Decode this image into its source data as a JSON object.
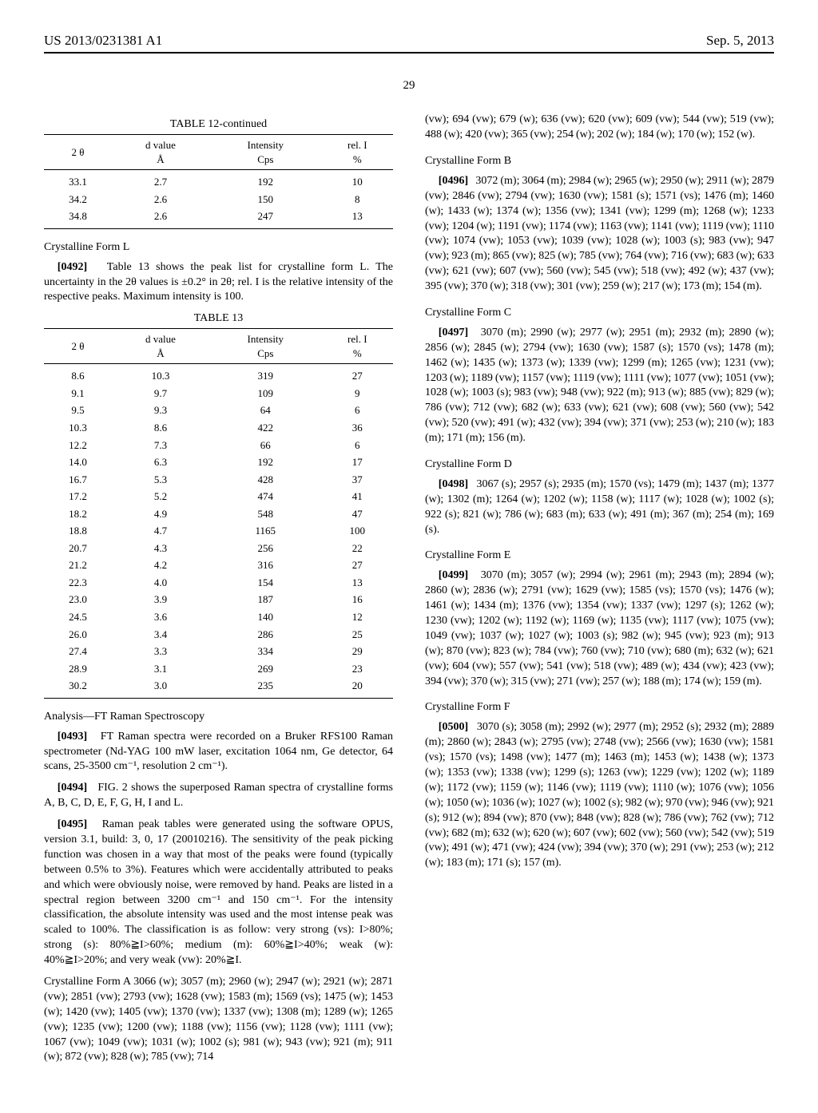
{
  "header": {
    "left": "US 2013/0231381 A1",
    "right": "Sep. 5, 2013"
  },
  "page_number": "29",
  "table12": {
    "caption": "TABLE 12-continued",
    "columns": [
      "2 θ",
      "d value\nÅ",
      "Intensity\nCps",
      "rel. I\n%"
    ],
    "rows": [
      [
        "33.1",
        "2.7",
        "192",
        "10"
      ],
      [
        "34.2",
        "2.6",
        "150",
        "8"
      ],
      [
        "34.8",
        "2.6",
        "247",
        "13"
      ]
    ]
  },
  "formL_heading": "Crystalline Form L",
  "para0492": "Table 13 shows the peak list for crystalline form L. The uncertainty in the 2θ values is ±0.2° in 2θ; rel. I is the relative intensity of the respective peaks. Maximum intensity is 100.",
  "table13": {
    "caption": "TABLE 13",
    "columns": [
      "2 θ",
      "d value\nÅ",
      "Intensity\nCps",
      "rel. I\n%"
    ],
    "rows": [
      [
        "8.6",
        "10.3",
        "319",
        "27"
      ],
      [
        "9.1",
        "9.7",
        "109",
        "9"
      ],
      [
        "9.5",
        "9.3",
        "64",
        "6"
      ],
      [
        "10.3",
        "8.6",
        "422",
        "36"
      ],
      [
        "12.2",
        "7.3",
        "66",
        "6"
      ],
      [
        "14.0",
        "6.3",
        "192",
        "17"
      ],
      [
        "16.7",
        "5.3",
        "428",
        "37"
      ],
      [
        "17.2",
        "5.2",
        "474",
        "41"
      ],
      [
        "18.2",
        "4.9",
        "548",
        "47"
      ],
      [
        "18.8",
        "4.7",
        "1165",
        "100"
      ],
      [
        "20.7",
        "4.3",
        "256",
        "22"
      ],
      [
        "21.2",
        "4.2",
        "316",
        "27"
      ],
      [
        "22.3",
        "4.0",
        "154",
        "13"
      ],
      [
        "23.0",
        "3.9",
        "187",
        "16"
      ],
      [
        "24.5",
        "3.6",
        "140",
        "12"
      ],
      [
        "26.0",
        "3.4",
        "286",
        "25"
      ],
      [
        "27.4",
        "3.3",
        "334",
        "29"
      ],
      [
        "28.9",
        "3.1",
        "269",
        "23"
      ],
      [
        "30.2",
        "3.0",
        "235",
        "20"
      ]
    ]
  },
  "raman_heading": "Analysis—FT Raman Spectroscopy",
  "para0493": "FT Raman spectra were recorded on a Bruker RFS100 Raman spectrometer (Nd-YAG 100 mW laser, excitation 1064 nm, Ge detector, 64 scans, 25-3500 cm⁻¹, resolution 2 cm⁻¹).",
  "para0494": "FIG. 2 shows the superposed Raman spectra of crystalline forms A, B, C, D, E, F, G, H, I and L.",
  "para0495": "Raman peak tables were generated using the software OPUS, version 3.1, build: 3, 0, 17 (20010216). The sensitivity of the peak picking function was chosen in a way that most of the peaks were found (typically between 0.5% to 3%). Features which were accidentally attributed to peaks and which were obviously noise, were removed by hand. Peaks are listed in a spectral region between 3200 cm⁻¹ and 150 cm⁻¹. For the intensity classification, the absolute intensity was used and the most intense peak was scaled to 100%. The classification is as follow: very strong (vs): I>80%; strong (s): 80%≧I>60%; medium (m): 60%≧I>40%; weak (w): 40%≧I>20%; and very weak (vw): 20%≧I.",
  "formA_text": "Crystalline Form A 3066 (w); 3057 (m); 2960 (w); 2947 (w); 2921 (w); 2871 (vw); 2851 (vw); 2793 (vw); 1628 (vw); 1583 (m); 1569 (vs); 1475 (w); 1453 (w); 1420 (vw); 1405 (vw); 1370 (vw); 1337 (vw); 1308 (m); 1289 (w); 1265 (vw); 1235 (vw); 1200 (vw); 1188 (vw); 1156 (vw); 1128 (vw); 1111 (vw); 1067 (vw); 1049 (vw); 1031 (w); 1002 (s); 981 (w); 943 (vw); 921 (m); 911 (w); 872 (vw); 828 (w); 785 (vw); 714",
  "formA_cont": "(vw); 694 (vw); 679 (w); 636 (vw); 620 (vw); 609 (vw); 544 (vw); 519 (vw); 488 (w); 420 (vw); 365 (vw); 254 (w); 202 (w); 184 (w); 170 (w); 152 (w).",
  "formB_heading": "Crystalline Form B",
  "para0496": "3072 (m); 3064 (m); 2984 (w); 2965 (w); 2950 (w); 2911 (w); 2879 (vw); 2846 (vw); 2794 (vw); 1630 (vw); 1581 (s); 1571 (vs); 1476 (m); 1460 (w); 1433 (w); 1374 (w); 1356 (vw); 1341 (vw); 1299 (m); 1268 (w); 1233 (vw); 1204 (w); 1191 (vw); 1174 (vw); 1163 (vw); 1141 (vw); 1119 (vw); 1110 (vw); 1074 (vw); 1053 (vw); 1039 (vw); 1028 (w); 1003 (s); 983 (vw); 947 (vw); 923 (m); 865 (vw); 825 (w); 785 (vw); 764 (vw); 716 (vw); 683 (w); 633 (vw); 621 (vw); 607 (vw); 560 (vw); 545 (vw); 518 (vw); 492 (w); 437 (vw); 395 (vw); 370 (w); 318 (vw); 301 (vw); 259 (w); 217 (w); 173 (m); 154 (m).",
  "formC_heading": "Crystalline Form C",
  "para0497": "3070 (m); 2990 (w); 2977 (w); 2951 (m); 2932 (m); 2890 (w); 2856 (w); 2845 (w); 2794 (vw); 1630 (vw); 1587 (s); 1570 (vs); 1478 (m); 1462 (w); 1435 (w); 1373 (w); 1339 (vw); 1299 (m); 1265 (vw); 1231 (vw); 1203 (w); 1189 (vw); 1157 (vw); 1119 (vw); 1111 (vw); 1077 (vw); 1051 (vw); 1028 (w); 1003 (s); 983 (vw); 948 (vw); 922 (m); 913 (w); 885 (vw); 829 (w); 786 (vw); 712 (vw); 682 (w); 633 (vw); 621 (vw); 608 (vw); 560 (vw); 542 (vw); 520 (vw); 491 (w); 432 (vw); 394 (vw); 371 (vw); 253 (w); 210 (w); 183 (m); 171 (m); 156 (m).",
  "formD_heading": "Crystalline Form D",
  "para0498": "3067 (s); 2957 (s); 2935 (m); 1570 (vs); 1479 (m); 1437 (m); 1377 (w); 1302 (m); 1264 (w); 1202 (w); 1158 (w); 1117 (w); 1028 (w); 1002 (s); 922 (s); 821 (w); 786 (w); 683 (m); 633 (w); 491 (m); 367 (m); 254 (m); 169 (s).",
  "formE_heading": "Crystalline Form E",
  "para0499": "3070 (m); 3057 (w); 2994 (w); 2961 (m); 2943 (m); 2894 (w); 2860 (w); 2836 (w); 2791 (vw); 1629 (vw); 1585 (vs); 1570 (vs); 1476 (w); 1461 (w); 1434 (m); 1376 (vw); 1354 (vw); 1337 (vw); 1297 (s); 1262 (w); 1230 (vw); 1202 (w); 1192 (w); 1169 (w); 1135 (vw); 1117 (vw); 1075 (vw); 1049 (vw); 1037 (w); 1027 (w); 1003 (s); 982 (w); 945 (vw); 923 (m); 913 (w); 870 (vw); 823 (w); 784 (vw); 760 (vw); 710 (vw); 680 (m); 632 (w); 621 (vw); 604 (vw); 557 (vw); 541 (vw); 518 (vw); 489 (w); 434 (vw); 423 (vw); 394 (vw); 370 (w); 315 (vw); 271 (vw); 257 (w); 188 (m); 174 (w); 159 (m).",
  "formF_heading": "Crystalline Form F",
  "para0500": "3070 (s); 3058 (m); 2992 (w); 2977 (m); 2952 (s); 2932 (m); 2889 (m); 2860 (w); 2843 (w); 2795 (vw); 2748 (vw); 2566 (vw); 1630 (vw); 1581 (vs); 1570 (vs); 1498 (vw); 1477 (m); 1463 (m); 1453 (w); 1438 (w); 1373 (w); 1353 (vw); 1338 (vw); 1299 (s); 1263 (vw); 1229 (vw); 1202 (w); 1189 (w); 1172 (vw); 1159 (w); 1146 (vw); 1119 (vw); 1110 (w); 1076 (vw); 1056 (w); 1050 (w); 1036 (w); 1027 (w); 1002 (s); 982 (w); 970 (vw); 946 (vw); 921 (s); 912 (w); 894 (vw); 870 (vw); 848 (vw); 828 (w); 786 (vw); 762 (vw); 712 (vw); 682 (m); 632 (w); 620 (w); 607 (vw); 602 (vw); 560 (vw); 542 (vw); 519 (vw); 491 (w); 471 (vw); 424 (vw); 394 (vw); 370 (w); 291 (vw); 253 (w); 212 (w); 183 (m); 171 (s); 157 (m)."
}
